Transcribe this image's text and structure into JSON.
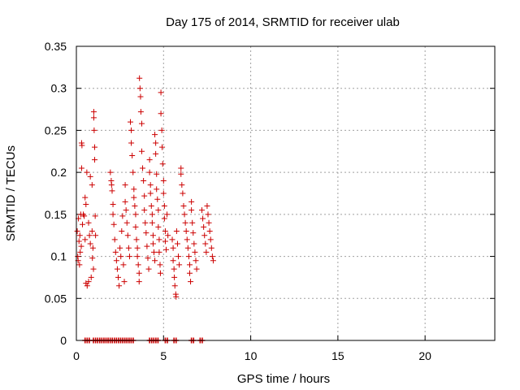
{
  "chart_data": {
    "type": "scatter",
    "title": "Day 175 of 2014, SRMTID for receiver ulab",
    "xlabel": "GPS time / hours",
    "ylabel": "SRMTID / TECUs",
    "xlim": [
      0,
      24
    ],
    "ylim": [
      0,
      0.35
    ],
    "xticks": [
      0,
      5,
      10,
      15,
      20
    ],
    "xtick_labels": [
      "0",
      "5",
      "10",
      "15",
      "20"
    ],
    "yticks": [
      0,
      0.05,
      0.1,
      0.15,
      0.2,
      0.25,
      0.3,
      0.35
    ],
    "ytick_labels": [
      "0",
      "0.05",
      "0.1",
      "0.15",
      "0.2",
      "0.25",
      "0.3",
      "0.35"
    ],
    "grid": true,
    "marker": "+",
    "color": "#cc0000",
    "series": [
      {
        "name": "SRMTID",
        "points": [
          [
            0.05,
            0.13
          ],
          [
            0.08,
            0.1
          ],
          [
            0.1,
            0.095
          ],
          [
            0.12,
            0.145
          ],
          [
            0.15,
            0.118
          ],
          [
            0.18,
            0.09
          ],
          [
            0.2,
            0.125
          ],
          [
            0.22,
            0.105
          ],
          [
            0.25,
            0.15
          ],
          [
            0.28,
            0.112
          ],
          [
            0.3,
            0.205
          ],
          [
            0.3,
            0.235
          ],
          [
            0.32,
            0.232
          ],
          [
            0.35,
            0.138
          ],
          [
            0.4,
            0.15
          ],
          [
            0.45,
            0.148
          ],
          [
            0.5,
            0.17
          ],
          [
            0.5,
            0.12
          ],
          [
            0.55,
            0.162
          ],
          [
            0.55,
            0.068
          ],
          [
            0.6,
            0.2
          ],
          [
            0.62,
            0.065
          ],
          [
            0.7,
            0.14
          ],
          [
            0.7,
            0.07
          ],
          [
            0.75,
            0.125
          ],
          [
            0.8,
            0.195
          ],
          [
            0.8,
            0.115
          ],
          [
            0.85,
            0.075
          ],
          [
            0.9,
            0.185
          ],
          [
            0.9,
            0.13
          ],
          [
            0.92,
            0.098
          ],
          [
            0.95,
            0.11
          ],
          [
            0.98,
            0.085
          ],
          [
            1.0,
            0.272
          ],
          [
            1.0,
            0.265
          ],
          [
            1.02,
            0.25
          ],
          [
            1.05,
            0.23
          ],
          [
            1.05,
            0.215
          ],
          [
            1.08,
            0.148
          ],
          [
            1.1,
            0.125
          ],
          [
            1.95,
            0.2
          ],
          [
            2.0,
            0.19
          ],
          [
            2.02,
            0.185
          ],
          [
            2.05,
            0.178
          ],
          [
            2.1,
            0.162
          ],
          [
            2.1,
            0.15
          ],
          [
            2.15,
            0.138
          ],
          [
            2.2,
            0.12
          ],
          [
            2.25,
            0.105
          ],
          [
            2.3,
            0.095
          ],
          [
            2.35,
            0.085
          ],
          [
            2.4,
            0.075
          ],
          [
            2.45,
            0.065
          ],
          [
            2.5,
            0.11
          ],
          [
            2.55,
            0.1
          ],
          [
            2.6,
            0.13
          ],
          [
            2.65,
            0.148
          ],
          [
            2.7,
            0.09
          ],
          [
            2.75,
            0.07
          ],
          [
            2.8,
            0.185
          ],
          [
            2.8,
            0.165
          ],
          [
            2.85,
            0.155
          ],
          [
            2.9,
            0.14
          ],
          [
            2.95,
            0.125
          ],
          [
            3.0,
            0.11
          ],
          [
            3.05,
            0.1
          ],
          [
            3.1,
            0.26
          ],
          [
            3.15,
            0.25
          ],
          [
            3.15,
            0.235
          ],
          [
            3.2,
            0.22
          ],
          [
            3.25,
            0.2
          ],
          [
            3.3,
            0.18
          ],
          [
            3.3,
            0.17
          ],
          [
            3.35,
            0.16
          ],
          [
            3.4,
            0.15
          ],
          [
            3.4,
            0.135
          ],
          [
            3.45,
            0.12
          ],
          [
            3.5,
            0.11
          ],
          [
            3.5,
            0.1
          ],
          [
            3.55,
            0.09
          ],
          [
            3.6,
            0.08
          ],
          [
            3.6,
            0.07
          ],
          [
            3.62,
            0.312
          ],
          [
            3.65,
            0.3
          ],
          [
            3.68,
            0.29
          ],
          [
            3.7,
            0.272
          ],
          [
            3.75,
            0.258
          ],
          [
            3.75,
            0.225
          ],
          [
            3.8,
            0.205
          ],
          [
            3.85,
            0.19
          ],
          [
            3.9,
            0.172
          ],
          [
            3.9,
            0.155
          ],
          [
            3.95,
            0.14
          ],
          [
            4.0,
            0.128
          ],
          [
            4.05,
            0.112
          ],
          [
            4.1,
            0.098
          ],
          [
            4.15,
            0.085
          ],
          [
            4.2,
            0.215
          ],
          [
            4.2,
            0.2
          ],
          [
            4.25,
            0.185
          ],
          [
            4.25,
            0.175
          ],
          [
            4.3,
            0.16
          ],
          [
            4.35,
            0.15
          ],
          [
            4.35,
            0.14
          ],
          [
            4.4,
            0.125
          ],
          [
            4.4,
            0.115
          ],
          [
            4.45,
            0.105
          ],
          [
            4.5,
            0.095
          ],
          [
            4.5,
            0.245
          ],
          [
            4.55,
            0.235
          ],
          [
            4.55,
            0.222
          ],
          [
            4.6,
            0.198
          ],
          [
            4.6,
            0.18
          ],
          [
            4.65,
            0.168
          ],
          [
            4.7,
            0.155
          ],
          [
            4.7,
            0.135
          ],
          [
            4.75,
            0.12
          ],
          [
            4.75,
            0.105
          ],
          [
            4.8,
            0.09
          ],
          [
            4.82,
            0.08
          ],
          [
            4.85,
            0.295
          ],
          [
            4.85,
            0.27
          ],
          [
            4.9,
            0.25
          ],
          [
            4.92,
            0.23
          ],
          [
            4.95,
            0.21
          ],
          [
            5.0,
            0.19
          ],
          [
            5.0,
            0.175
          ],
          [
            5.05,
            0.16
          ],
          [
            5.05,
            0.145
          ],
          [
            5.1,
            0.13
          ],
          [
            5.1,
            0.118
          ],
          [
            5.15,
            0.108
          ],
          [
            5.2,
            0.15
          ],
          [
            5.25,
            0.125
          ],
          [
            5.5,
            0.12
          ],
          [
            5.55,
            0.11
          ],
          [
            5.55,
            0.095
          ],
          [
            5.6,
            0.085
          ],
          [
            5.62,
            0.075
          ],
          [
            5.65,
            0.065
          ],
          [
            5.7,
            0.055
          ],
          [
            5.72,
            0.052
          ],
          [
            5.75,
            0.13
          ],
          [
            5.8,
            0.115
          ],
          [
            5.85,
            0.1
          ],
          [
            5.9,
            0.09
          ],
          [
            6.0,
            0.198
          ],
          [
            6.0,
            0.205
          ],
          [
            6.05,
            0.185
          ],
          [
            6.1,
            0.175
          ],
          [
            6.15,
            0.16
          ],
          [
            6.2,
            0.15
          ],
          [
            6.25,
            0.14
          ],
          [
            6.3,
            0.13
          ],
          [
            6.35,
            0.12
          ],
          [
            6.4,
            0.11
          ],
          [
            6.45,
            0.1
          ],
          [
            6.5,
            0.09
          ],
          [
            6.5,
            0.08
          ],
          [
            6.55,
            0.07
          ],
          [
            6.6,
            0.165
          ],
          [
            6.6,
            0.155
          ],
          [
            6.65,
            0.14
          ],
          [
            6.7,
            0.128
          ],
          [
            6.75,
            0.115
          ],
          [
            6.8,
            0.105
          ],
          [
            6.85,
            0.095
          ],
          [
            6.9,
            0.085
          ],
          [
            7.2,
            0.155
          ],
          [
            7.25,
            0.145
          ],
          [
            7.3,
            0.135
          ],
          [
            7.35,
            0.125
          ],
          [
            7.4,
            0.115
          ],
          [
            7.45,
            0.105
          ],
          [
            7.5,
            0.16
          ],
          [
            7.55,
            0.15
          ],
          [
            7.6,
            0.14
          ],
          [
            7.65,
            0.13
          ],
          [
            7.7,
            0.12
          ],
          [
            7.75,
            0.11
          ],
          [
            7.8,
            0.1
          ],
          [
            7.85,
            0.095
          ]
        ]
      }
    ],
    "baseline_markers": {
      "y": 0,
      "x": [
        0.5,
        0.62,
        0.74,
        0.98,
        1.1,
        1.22,
        1.34,
        1.46,
        1.58,
        1.7,
        1.82,
        1.94,
        2.06,
        2.18,
        2.3,
        2.42,
        2.54,
        2.66,
        2.78,
        2.9,
        3.02,
        3.14,
        3.26,
        4.2,
        4.32,
        4.44,
        4.56,
        4.68,
        5.1,
        5.22,
        5.6,
        5.72,
        6.6,
        6.72,
        7.1,
        7.22
      ]
    }
  }
}
